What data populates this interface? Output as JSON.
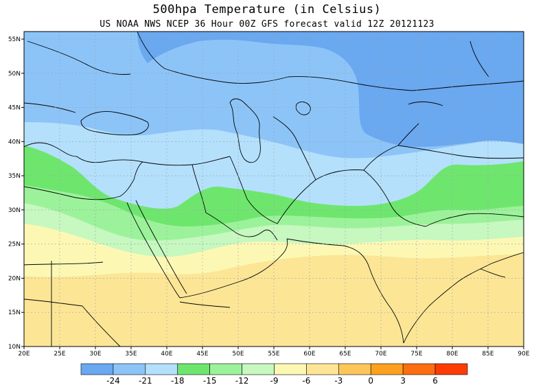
{
  "title": "500hpa  Temperature (in Celsius)",
  "subtitle": "US NOAA NWS NCEP 36 Hour 00Z GFS forecast valid 12Z 20121123",
  "map": {
    "lat_ticks": [
      "55N",
      "50N",
      "45N",
      "40N",
      "35N",
      "30N",
      "25N",
      "20N",
      "15N",
      "10N"
    ],
    "lon_ticks": [
      "20E",
      "25E",
      "30E",
      "35E",
      "40E",
      "45E",
      "50E",
      "55E",
      "60E",
      "65E",
      "70E",
      "75E",
      "80E",
      "85E",
      "90E"
    ]
  },
  "legend": {
    "labels": [
      "-24",
      "-21",
      "-18",
      "-15",
      "-12",
      "-9",
      "-6",
      "-3",
      "0",
      "3",
      "6"
    ],
    "colors": [
      "#6aa8f0",
      "#8cc4f8",
      "#b4e0fc",
      "#6ee66e",
      "#9cf29a",
      "#c6f8c0",
      "#fcf8b4",
      "#fce696",
      "#fcc65a",
      "#fca01e",
      "#fc6e10",
      "#fc3c04"
    ]
  },
  "colors": {
    "band_m24": "#6aa8f0",
    "band_m21": "#8cc4f8",
    "band_m18": "#b4e0fc",
    "band_m15": "#6ee66e",
    "band_m12": "#9cf29a",
    "band_m9": "#c6f8c0",
    "band_m6": "#fcf8b4",
    "band_m3": "#fce696"
  }
}
